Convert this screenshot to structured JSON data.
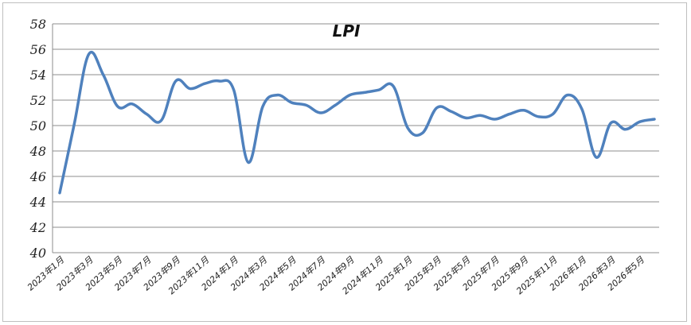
{
  "chart_data": {
    "type": "line",
    "title": "LPI",
    "xlabel": "",
    "ylabel": "",
    "ylim": [
      40,
      58
    ],
    "yticks": [
      40,
      42,
      44,
      46,
      48,
      50,
      52,
      54,
      56,
      58
    ],
    "grid": true,
    "legend": "none",
    "line_color": "#4f81bd",
    "x_tick_labels": [
      "2023年1月",
      "2023年3月",
      "2023年5月",
      "2023年7月",
      "2023年9月",
      "2023年11月",
      "2024年1月",
      "2024年3月",
      "2024年5月",
      "2024年7月",
      "2024年9月",
      "2024年11月",
      "2025年1月",
      "2025年3月",
      "2025年5月",
      "2025年7月",
      "2025年9月",
      "2025年11月",
      "2026年1月",
      "2026年3月",
      "2026年5月"
    ],
    "series": [
      {
        "values": [
          44.7,
          50.1,
          55.6,
          54.0,
          51.5,
          51.7,
          50.9,
          50.4,
          53.5,
          52.9,
          53.3,
          53.5,
          52.8,
          47.1,
          51.5,
          52.4,
          51.8,
          51.6,
          51.0,
          51.6,
          52.4,
          52.6,
          52.8,
          53.1,
          49.8,
          49.4,
          51.4,
          51.1,
          50.6,
          50.8,
          50.5,
          50.9,
          51.2,
          50.7,
          50.9,
          52.4,
          51.3,
          47.5,
          50.2,
          49.7,
          50.3,
          50.5
        ]
      }
    ]
  }
}
